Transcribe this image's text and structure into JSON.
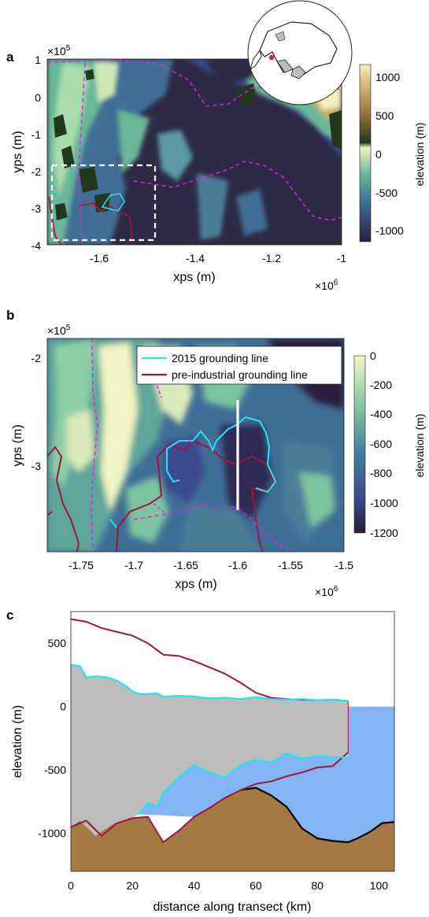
{
  "panels": {
    "a": {
      "letter": "a",
      "xlabel": "xps (m)",
      "ylabel": "yps (m)",
      "x_exponent_prefix": "×10",
      "x_exponent": "6",
      "y_exponent_prefix": "×10",
      "y_exponent": "5",
      "xticks": [
        "-1.6",
        "-1.4",
        "-1.2",
        "-1"
      ],
      "yticks": [
        "1",
        "0",
        "-1",
        "-2",
        "-3",
        "-4"
      ],
      "colorbar_label": "elevation (m)",
      "colorbar_ticks": [
        "1000",
        "500",
        "0",
        "-500",
        "-1000"
      ]
    },
    "b": {
      "letter": "b",
      "xlabel": "xps (m)",
      "ylabel": "yps (m)",
      "x_exponent_prefix": "×10",
      "x_exponent": "6",
      "y_exponent_prefix": "×10",
      "y_exponent": "5",
      "xticks": [
        "-1.75",
        "-1.7",
        "-1.65",
        "-1.6",
        "-1.55",
        "-1.5"
      ],
      "yticks": [
        "-2",
        "-3"
      ],
      "colorbar_label": "elevation (m)",
      "colorbar_ticks": [
        "0",
        "-200",
        "-400",
        "-600",
        "-800",
        "-1000",
        "-1200"
      ],
      "legend": [
        "2015 grounding line",
        "pre-industrial grounding line"
      ]
    },
    "c": {
      "letter": "c",
      "xlabel": "distance along transect (km)",
      "ylabel": "elevation (m)",
      "xticks": [
        "0",
        "20",
        "40",
        "60",
        "80",
        "100"
      ],
      "yticks": [
        "500",
        "0",
        "-500",
        "-1000"
      ]
    }
  },
  "colors": {
    "cyan": "#22e5ee",
    "crimson": "#9e1640",
    "magenta": "#e31ee3",
    "ice": "#bdbdbd",
    "ocean": "#84b4f3",
    "bed": "#a27a42",
    "bed_line": "#000000"
  },
  "chart_data": [
    {
      "id": "a",
      "type": "heatmap",
      "xlabel": "xps (m)",
      "ylabel": "yps (m)",
      "xlim": [
        -1.78,
        -1.0
      ],
      "ylim": [
        -4.0,
        1.0
      ],
      "x_scale": "1e6",
      "y_scale": "1e5",
      "colorbar": {
        "label": "elevation (m)",
        "range": [
          -1200,
          1200
        ],
        "ticks": [
          1000,
          500,
          0,
          -500,
          -1000
        ]
      },
      "annotation": "white dashed box marks panel b extent; inset shows location on Antarctica"
    },
    {
      "id": "b",
      "type": "heatmap",
      "xlabel": "xps (m)",
      "ylabel": "yps (m)",
      "xlim": [
        -1.78,
        -1.5
      ],
      "ylim": [
        -3.85,
        -1.8
      ],
      "x_scale": "1e6",
      "y_scale": "1e5",
      "colorbar": {
        "label": "elevation (m)",
        "range": [
          -1200,
          0
        ],
        "ticks": [
          0,
          -200,
          -400,
          -600,
          -800,
          -1000,
          -1200
        ]
      },
      "legend": [
        "2015 grounding line",
        "pre-industrial grounding line"
      ],
      "transect_x": -1.6,
      "transect_y": [
        -3.45,
        -2.3
      ]
    },
    {
      "id": "c",
      "type": "area",
      "xlabel": "distance along transect (km)",
      "ylabel": "elevation (m)",
      "xlim": [
        0,
        105
      ],
      "ylim": [
        -1300,
        750
      ],
      "series": [
        {
          "name": "2015 grounding line",
          "x": [
            0,
            3,
            5,
            8,
            12,
            15,
            18,
            20,
            22,
            25,
            28,
            30,
            35,
            40,
            45,
            50,
            55,
            60,
            65,
            70,
            75,
            80,
            85,
            90
          ],
          "surface": [
            330,
            320,
            230,
            240,
            230,
            205,
            160,
            120,
            100,
            100,
            105,
            80,
            85,
            80,
            65,
            70,
            60,
            75,
            60,
            55,
            60,
            50,
            55,
            45
          ],
          "base": [
            null,
            null,
            null,
            null,
            null,
            null,
            null,
            null,
            -850,
            -760,
            -790,
            -680,
            -560,
            -460,
            -520,
            -560,
            -460,
            -420,
            -440,
            -370,
            -410,
            -390,
            -400,
            -400
          ]
        },
        {
          "name": "pre-industrial grounding line",
          "x": [
            0,
            5,
            10,
            15,
            20,
            25,
            30,
            35,
            40,
            45,
            50,
            55,
            60,
            65,
            70,
            75,
            80,
            85,
            90
          ],
          "surface": [
            690,
            670,
            620,
            590,
            560,
            500,
            410,
            400,
            360,
            310,
            260,
            190,
            110,
            70,
            60,
            55,
            50,
            55,
            45
          ],
          "base": [
            -950,
            -900,
            -1020,
            -920,
            -880,
            -870,
            -1070,
            -980,
            -870,
            -800,
            -720,
            -660,
            -610,
            -590,
            -550,
            -520,
            -480,
            -470,
            -360
          ]
        },
        {
          "name": "bed",
          "x": [
            0,
            3,
            8,
            14,
            20,
            25,
            30,
            35,
            40,
            45,
            50,
            55,
            60,
            65,
            70,
            75,
            80,
            85,
            90,
            93,
            97,
            101,
            105
          ],
          "values": [
            -950,
            -900,
            -1020,
            -920,
            -880,
            -870,
            -1070,
            -980,
            -870,
            -800,
            -720,
            -660,
            -640,
            -700,
            -790,
            -960,
            -1040,
            -1060,
            -1070,
            -1040,
            -990,
            -920,
            -910
          ]
        }
      ],
      "ocean_surface": 0,
      "ocean_x": [
        90,
        105
      ]
    }
  ]
}
